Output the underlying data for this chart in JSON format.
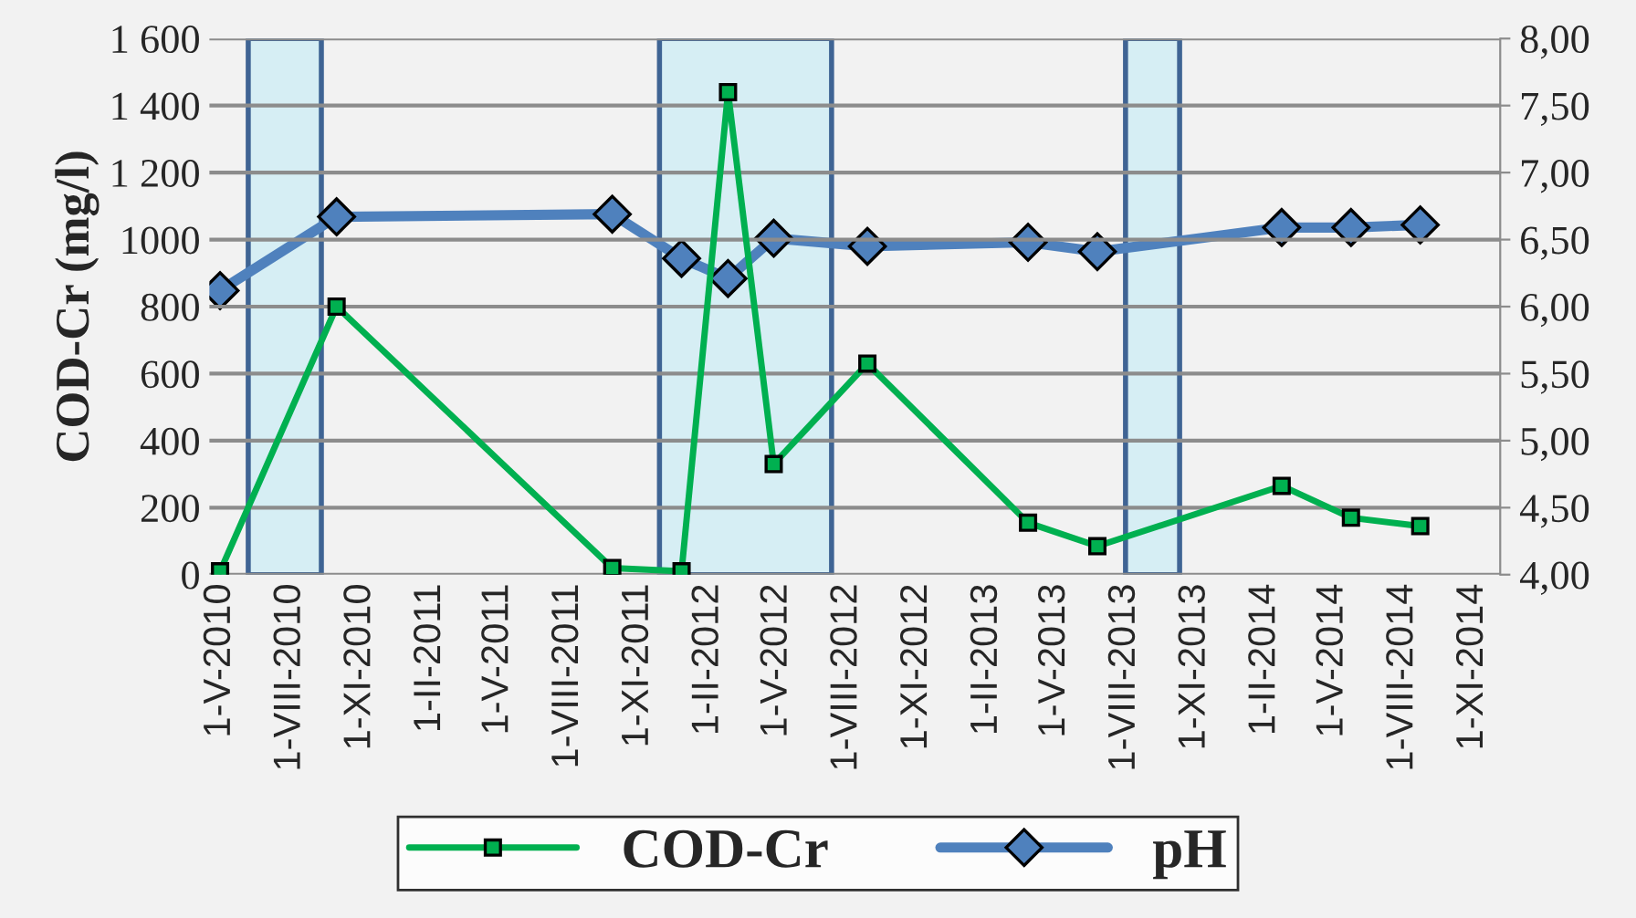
{
  "chart_data": {
    "type": "line",
    "ylabel": "COD-Cr (mg/l)",
    "x": [
      "2010-05-01",
      "2010-10-01",
      "2011-09-28",
      "2011-12-28",
      "2012-02-27",
      "2012-04-27",
      "2012-08-28",
      "2013-03-27",
      "2013-06-26",
      "2014-02-23",
      "2014-05-25",
      "2014-08-24"
    ],
    "series": [
      {
        "name": "COD-Cr",
        "color": "#00b050",
        "marker": "square",
        "values": [
          10,
          800,
          20,
          10,
          1440,
          330,
          630,
          155,
          85,
          265,
          170,
          145
        ]
      },
      {
        "name": "pH",
        "color": "#4f81bd",
        "marker": "diamond",
        "axis": "y2",
        "values": [
          6.12,
          6.67,
          6.69,
          6.36,
          6.21,
          6.51,
          6.45,
          6.48,
          6.41,
          6.59,
          6.59,
          6.61
        ]
      }
    ],
    "xlim": [
      "2010-04-17",
      "2014-12-07"
    ],
    "xticks": [
      {
        "value": "2010-05-01",
        "label": "1-V-2010"
      },
      {
        "value": "2010-08-01",
        "label": "1-VIII-2010"
      },
      {
        "value": "2010-11-01",
        "label": "1-XI-2010"
      },
      {
        "value": "2011-02-01",
        "label": "1-II-2011"
      },
      {
        "value": "2011-05-01",
        "label": "1-V-2011"
      },
      {
        "value": "2011-08-01",
        "label": "1-VIII-2011"
      },
      {
        "value": "2011-11-01",
        "label": "1-XI-2011"
      },
      {
        "value": "2012-02-01",
        "label": "1-II-2012"
      },
      {
        "value": "2012-05-01",
        "label": "1-V-2012"
      },
      {
        "value": "2012-08-01",
        "label": "1-VIII-2012"
      },
      {
        "value": "2012-11-01",
        "label": "1-XI-2012"
      },
      {
        "value": "2013-02-01",
        "label": "1-II-2013"
      },
      {
        "value": "2013-05-01",
        "label": "1-V-2013"
      },
      {
        "value": "2013-08-01",
        "label": "1-VIII-2013"
      },
      {
        "value": "2013-11-01",
        "label": "1-XI-2013"
      },
      {
        "value": "2014-02-01",
        "label": "1-II-2014"
      },
      {
        "value": "2014-05-01",
        "label": "1-V-2014"
      },
      {
        "value": "2014-08-01",
        "label": "1-VIII-2014"
      },
      {
        "value": "2014-11-01",
        "label": "1-XI-2014"
      }
    ],
    "ylim": [
      0,
      1600
    ],
    "yticks": [
      0,
      200,
      400,
      600,
      800,
      1000,
      {
        "value": 1200,
        "label": "1 200"
      },
      {
        "value": 1400,
        "label": "1 400"
      },
      {
        "value": 1600,
        "label": "1 600"
      }
    ],
    "y2lim": [
      4,
      8
    ],
    "y2ticks": [
      {
        "value": 4,
        "label": "4,00"
      },
      {
        "value": 4.5,
        "label": "4,50"
      },
      {
        "value": 5,
        "label": "5,00"
      },
      {
        "value": 5.5,
        "label": "5,50"
      },
      {
        "value": 6,
        "label": "6,00"
      },
      {
        "value": 6.5,
        "label": "6,50"
      },
      {
        "value": 7,
        "label": "7,00"
      },
      {
        "value": 7.5,
        "label": "7,50"
      },
      {
        "value": 8,
        "label": "8,00"
      }
    ],
    "bands": [
      {
        "axis": "x",
        "from": "2010-06-07",
        "to": "2010-09-11",
        "color": "#d6eef4"
      },
      {
        "axis": "x",
        "from": "2011-11-29",
        "to": "2012-07-12",
        "color": "#d6eef4"
      },
      {
        "axis": "x",
        "from": "2013-08-02",
        "to": "2013-10-12",
        "color": "#d6eef4"
      }
    ],
    "grid": "y",
    "legend": "bottom",
    "line_style": "solid"
  }
}
